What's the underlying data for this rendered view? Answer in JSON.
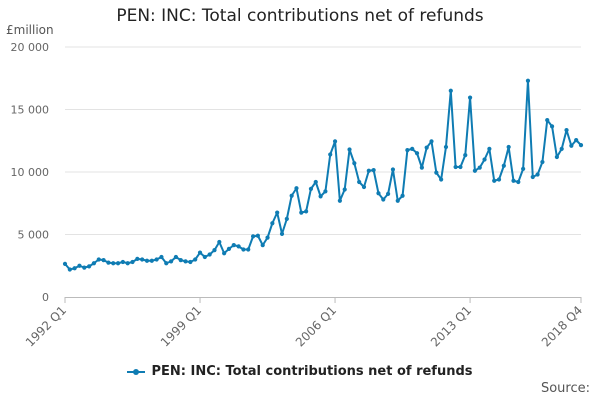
{
  "chart_data": {
    "type": "line",
    "title": "PEN: INC: Total contributions net of refunds",
    "unit_label": "£million",
    "source_label": "Source:",
    "legend_placement": "bottom",
    "grid": true,
    "color": "#0f7cb3",
    "ylim": [
      0,
      20000
    ],
    "yticks": [
      {
        "value": 0,
        "label": "0"
      },
      {
        "value": 5000,
        "label": "5 000"
      },
      {
        "value": 10000,
        "label": "10 000"
      },
      {
        "value": 15000,
        "label": "15 000"
      },
      {
        "value": 20000,
        "label": "20 000"
      }
    ],
    "x_start": "1992 Q1",
    "x_end": "2018 Q4",
    "xticks": [
      {
        "index": 0,
        "label": "1992 Q1"
      },
      {
        "index": 28,
        "label": "1999 Q1"
      },
      {
        "index": 56,
        "label": "2006 Q1"
      },
      {
        "index": 84,
        "label": "2013 Q1"
      },
      {
        "index": 107,
        "label": "2018 Q4"
      }
    ],
    "series": [
      {
        "name": "PEN: INC: Total contributions net of refunds",
        "values": [
          2650,
          2200,
          2300,
          2500,
          2350,
          2450,
          2700,
          3000,
          2950,
          2750,
          2700,
          2700,
          2800,
          2700,
          2800,
          3050,
          3000,
          2900,
          2900,
          3000,
          3200,
          2700,
          2850,
          3200,
          2950,
          2850,
          2800,
          3000,
          3550,
          3200,
          3400,
          3750,
          4400,
          3500,
          3850,
          4150,
          4050,
          3800,
          3800,
          4850,
          4900,
          4150,
          4750,
          5900,
          6750,
          5050,
          6250,
          8100,
          8700,
          6750,
          6850,
          8650,
          9200,
          8050,
          8450,
          11400,
          12450,
          7700,
          8600,
          11800,
          10700,
          9200,
          8800,
          10100,
          10150,
          8300,
          7800,
          8250,
          10200,
          7700,
          8100,
          11750,
          11850,
          11500,
          10350,
          11950,
          12450,
          9950,
          9400,
          12000,
          16500,
          10400,
          10400,
          11350,
          15950,
          10100,
          10350,
          11000,
          11850,
          9300,
          9400,
          10500,
          12000,
          9300,
          9200,
          10250,
          17300,
          9600,
          9800,
          10800,
          14150,
          13650,
          11200,
          11850,
          13350,
          12100,
          12550,
          12150
        ]
      }
    ]
  }
}
